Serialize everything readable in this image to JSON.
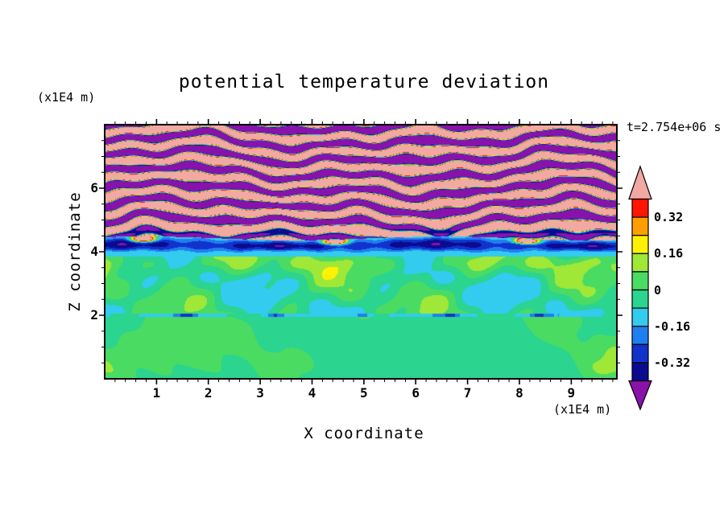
{
  "chart_data": {
    "type": "heatmap",
    "subtype": "filled-contour",
    "title": "potential temperature deviation",
    "xlabel": "X coordinate",
    "ylabel": "Z coordinate",
    "x_unit_label": "(x1E4 m)",
    "z_unit_label": "(x1E4 m)",
    "time_label": "t=2.754e+06 s",
    "x_range": [
      0,
      9.88
    ],
    "z_range": [
      0,
      8
    ],
    "x_ticks": [
      "1",
      "2",
      "3",
      "4",
      "5",
      "6",
      "7",
      "8",
      "9"
    ],
    "z_ticks": [
      "2",
      "4",
      "6"
    ],
    "x_minor_step": 0.2,
    "z_minor_step": 0.5,
    "grid": false,
    "colorbar": {
      "orientation": "vertical",
      "position": "right",
      "boundaries": [
        0.4,
        0.32,
        0.24,
        0.16,
        0.08,
        0,
        -0.08,
        -0.16,
        -0.24,
        -0.32,
        -0.4
      ],
      "tick_labels": [
        {
          "text": "0.32",
          "value": 0.32
        },
        {
          "text": "0.16",
          "value": 0.16
        },
        {
          "text": "0",
          "value": 0
        },
        {
          "text": "-0.16",
          "value": -0.16
        },
        {
          "text": "-0.32",
          "value": -0.32
        }
      ],
      "colors": {
        "over": "#F2A9A4",
        "segments": [
          "#FF1400",
          "#FF9E00",
          "#FFF200",
          "#9FE838",
          "#4ADB63",
          "#2BD48F",
          "#33CBEE",
          "#1F7FF0",
          "#1133CC",
          "#0B0B8F"
        ],
        "under": "#8812AA"
      }
    },
    "field_model": {
      "description": "stratified shear-turbulence: braided pink/purple bands aloft over a dark shear band near z=4 and near-zero green interior below",
      "regions": {
        "upper_turbulence": {
          "z_min": 4.42,
          "amplitude": 0.62,
          "band_wavenumber": 12.4,
          "description": "alternating pink (>0.4) and purple (<-0.4) wavy bands separated by thin red/orange/yellow/cyan/blue filaments"
        },
        "shear_band": {
          "z_min": 3.98,
          "z_max": 4.42,
          "min_value": -0.38,
          "edge_value": -0.12,
          "description": "dark navy/blue band with sparse red-orange spots along its top"
        },
        "cyan_strip": {
          "z_min": 3.86,
          "z_max": 3.98,
          "base": -0.12
        },
        "interior": {
          "z_min": 2.06,
          "z_max": 3.86,
          "base": -0.03,
          "variation": 0.075,
          "description": "spring-green background with chartreuse streaks and faint cyan wisps"
        },
        "cyan_line": {
          "z_min": 1.96,
          "z_max": 2.06,
          "base": -0.11
        },
        "bottom": {
          "z_max": 1.96,
          "base": -0.05,
          "blob_amplitude": 0.11,
          "description": "large chartreuse blobs on spring-green background"
        }
      }
    }
  }
}
